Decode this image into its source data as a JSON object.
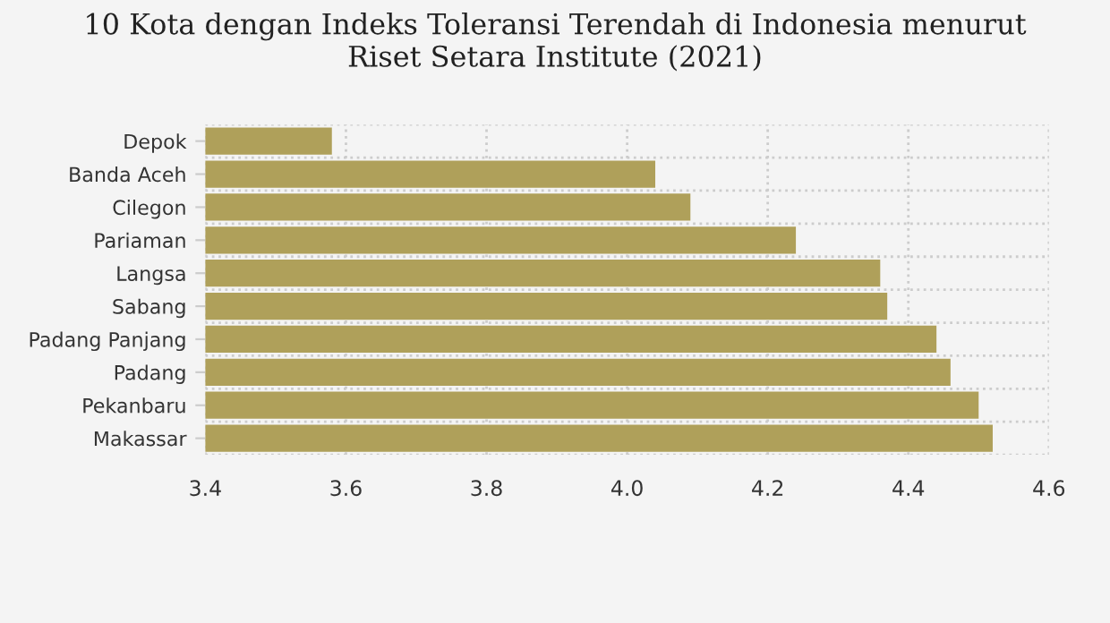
{
  "chart_data": {
    "type": "bar",
    "orientation": "horizontal",
    "title": "10 Kota dengan Indeks Toleransi Terendah di Indonesia menurut\nRiset Setara Institute (2021)",
    "categories": [
      "Depok",
      "Banda Aceh",
      "Cilegon",
      "Pariaman",
      "Langsa",
      "Sabang",
      "Padang Panjang",
      "Padang",
      "Pekanbaru",
      "Makassar"
    ],
    "values": [
      3.58,
      4.04,
      4.09,
      4.24,
      4.36,
      4.37,
      4.44,
      4.46,
      4.5,
      4.52
    ],
    "color": "#afa05a",
    "xlim": [
      3.4,
      4.6
    ],
    "xticks": [
      3.4,
      3.6,
      3.8,
      {
        "value": 4,
        "label": "4.0"
      },
      4.2,
      4.4,
      4.6
    ],
    "grid": true,
    "legend": false
  }
}
